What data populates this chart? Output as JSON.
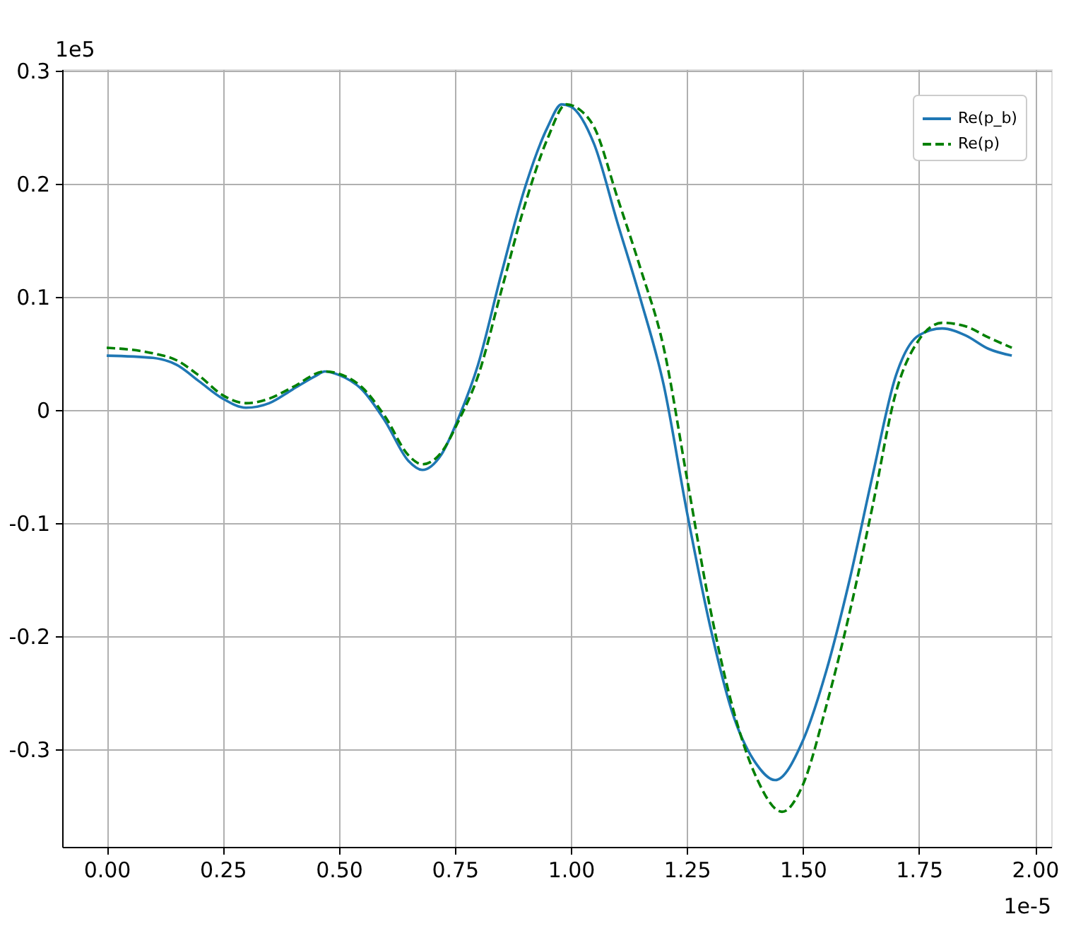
{
  "chart_data": {
    "type": "line",
    "annotations": [
      "1e5",
      "1e-5"
    ],
    "xlim": [
      -0.096,
      2.035
    ],
    "ylim": [
      -0.386,
      0.301
    ],
    "xticks": [
      {
        "value": 0,
        "label": "0.00"
      },
      {
        "value": 0.25,
        "label": "0.25"
      },
      {
        "value": 0.5,
        "label": "0.50"
      },
      {
        "value": 0.75,
        "label": "0.75"
      },
      {
        "value": 1,
        "label": "1.00"
      },
      {
        "value": 1.25,
        "label": "1.25"
      },
      {
        "value": 1.5,
        "label": "1.50"
      },
      {
        "value": 1.75,
        "label": "1.75"
      },
      {
        "value": 2,
        "label": "2.00"
      }
    ],
    "yticks": [
      -0.3,
      -0.2,
      -0.1,
      0,
      0.1,
      0.2,
      0.3
    ],
    "grid": true,
    "legend": "top right",
    "series": [
      {
        "name": "Re(p_b)",
        "color": "#1f77b4",
        "line_style": "solid",
        "x": [
          0,
          0.1,
          0.15,
          0.2,
          0.25,
          0.3,
          0.35,
          0.4,
          0.45,
          0.47,
          0.5,
          0.55,
          0.6,
          0.65,
          0.68,
          0.72,
          0.76,
          0.8,
          0.85,
          0.9,
          0.95,
          0.98,
          1.0,
          1.05,
          1.1,
          1.15,
          1.2,
          1.25,
          1.3,
          1.35,
          1.4,
          1.44,
          1.5,
          1.55,
          1.6,
          1.65,
          1.7,
          1.75,
          1.8,
          1.85,
          1.9,
          1.95
        ],
        "values": [
          0.048,
          0.046,
          0.04,
          0.025,
          0.01,
          0.002,
          0.006,
          0.018,
          0.03,
          0.034,
          0.031,
          0.018,
          -0.01,
          -0.045,
          -0.053,
          -0.04,
          -0.005,
          0.04,
          0.12,
          0.195,
          0.25,
          0.27,
          0.268,
          0.235,
          0.166,
          0.098,
          0.022,
          -0.09,
          -0.191,
          -0.27,
          -0.313,
          -0.327,
          -0.292,
          -0.231,
          -0.151,
          -0.058,
          0.03,
          0.066,
          0.072,
          0.066,
          0.054,
          0.048
        ]
      },
      {
        "name": "Re(p)",
        "color": "#008000",
        "line_style": "dashed",
        "x": [
          0,
          0.1,
          0.15,
          0.2,
          0.25,
          0.3,
          0.35,
          0.4,
          0.47,
          0.5,
          0.55,
          0.6,
          0.65,
          0.68,
          0.72,
          0.76,
          0.8,
          0.85,
          0.9,
          0.95,
          0.99,
          1.02,
          1.05,
          1.1,
          1.15,
          1.2,
          1.25,
          1.3,
          1.35,
          1.4,
          1.455,
          1.5,
          1.55,
          1.6,
          1.65,
          1.7,
          1.75,
          1.8,
          1.85,
          1.9,
          1.95
        ],
        "values": [
          0.055,
          0.05,
          0.044,
          0.03,
          0.013,
          0.006,
          0.01,
          0.02,
          0.034,
          0.032,
          0.02,
          -0.006,
          -0.04,
          -0.048,
          -0.038,
          -0.008,
          0.03,
          0.105,
          0.18,
          0.24,
          0.27,
          0.265,
          0.25,
          0.188,
          0.125,
          0.055,
          -0.06,
          -0.175,
          -0.265,
          -0.325,
          -0.355,
          -0.331,
          -0.262,
          -0.18,
          -0.085,
          0.015,
          0.062,
          0.077,
          0.074,
          0.064,
          0.055
        ]
      }
    ]
  }
}
